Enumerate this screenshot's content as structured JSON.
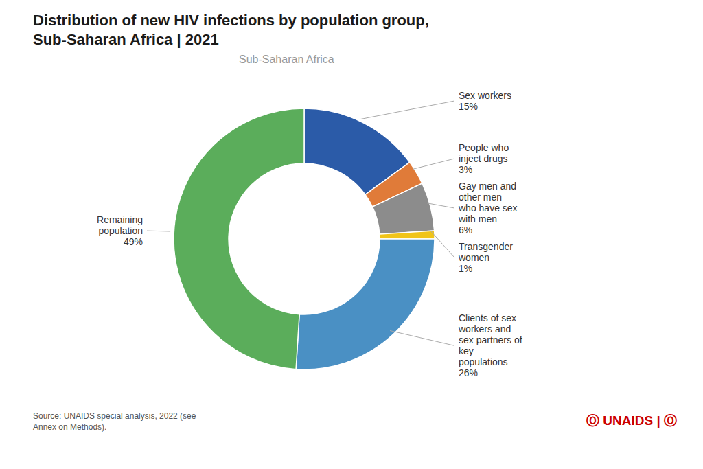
{
  "chart_data": {
    "type": "pie",
    "title": "Distribution of new HIV infections by population group,\nSub-Saharan Africa | 2021",
    "subtitle": "Sub-Saharan Africa",
    "categories": [
      "Sex workers",
      "People who\ninject drugs",
      "Gay men and\nother men\nwho have sex\nwith men",
      "Transgender\nwomen",
      "Clients of sex\nworkers and\nsex partners of\nkey\npopulations",
      "Remaining\npopulation"
    ],
    "values": [
      15,
      3,
      6,
      1,
      26,
      49
    ],
    "value_labels": [
      "15%",
      "3%",
      "6%",
      "1%",
      "26%",
      "49%"
    ],
    "colors": [
      "#2B5BA8",
      "#E07B39",
      "#8C8C8C",
      "#F0C419",
      "#4A90C4",
      "#5BAD5B"
    ],
    "data_labels": true,
    "annotations": [
      "Source: UNAIDS special analysis, 2022 (see\nAnnex on Methods).",
      "Ⓞ UNAIDS | Ⓞ"
    ]
  }
}
